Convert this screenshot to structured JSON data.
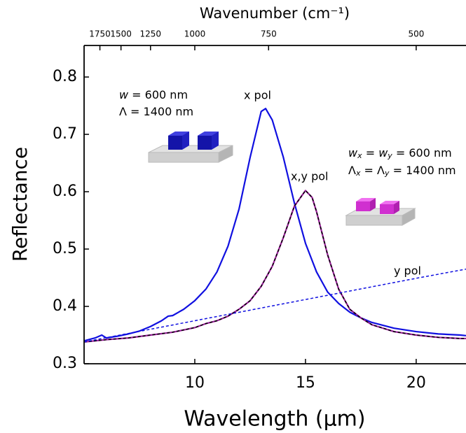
{
  "chart_data": {
    "type": "line",
    "xlabel": "Wavelength (μm)",
    "ylabel": "Reflectance",
    "x2label": "Wavenumber (cm⁻¹)",
    "xlim": [
      5,
      22.25
    ],
    "ylim": [
      0.3,
      0.855
    ],
    "xticks": [
      10,
      15,
      20
    ],
    "yticks": [
      0.3,
      0.4,
      0.5,
      0.6,
      0.7,
      0.8
    ],
    "x2ticks": [
      1750,
      1500,
      1250,
      1000,
      750,
      500
    ],
    "series": [
      {
        "name": "x pol",
        "color": "#1010e0",
        "dash": false,
        "x": [
          5,
          5.5,
          5.8,
          6,
          6.5,
          7,
          7.5,
          8,
          8.5,
          8.8,
          9,
          9.5,
          10,
          10.5,
          11,
          11.5,
          12,
          12.5,
          13,
          13.2,
          13.5,
          14,
          14.5,
          15,
          15.5,
          16,
          16.5,
          17,
          17.5,
          18,
          19,
          20,
          21,
          22,
          22.25
        ],
        "values": [
          0.34,
          0.345,
          0.35,
          0.345,
          0.348,
          0.352,
          0.357,
          0.365,
          0.375,
          0.383,
          0.384,
          0.395,
          0.41,
          0.43,
          0.46,
          0.505,
          0.57,
          0.66,
          0.74,
          0.745,
          0.725,
          0.66,
          0.58,
          0.51,
          0.46,
          0.425,
          0.405,
          0.39,
          0.38,
          0.372,
          0.362,
          0.356,
          0.352,
          0.35,
          0.349
        ]
      },
      {
        "name": "x,y pol",
        "color": "#9b1f9b",
        "dash": false,
        "x": [
          5,
          6,
          7,
          8,
          9,
          10,
          10.5,
          11,
          11.5,
          12,
          12.5,
          13,
          13.5,
          14,
          14.5,
          15,
          15.3,
          15.5,
          16,
          16.5,
          17,
          17.5,
          18,
          19,
          20,
          21,
          22,
          22.25
        ],
        "values": [
          0.338,
          0.342,
          0.345,
          0.35,
          0.355,
          0.363,
          0.37,
          0.375,
          0.383,
          0.395,
          0.41,
          0.435,
          0.47,
          0.52,
          0.575,
          0.602,
          0.59,
          0.565,
          0.49,
          0.43,
          0.395,
          0.38,
          0.368,
          0.356,
          0.35,
          0.346,
          0.344,
          0.344
        ]
      },
      {
        "color": "#000000",
        "dash": true,
        "x": [
          5,
          6,
          7,
          8,
          9,
          10,
          10.5,
          11,
          11.5,
          12,
          12.5,
          13,
          13.5,
          14,
          14.5,
          15,
          15.3,
          15.5,
          16,
          16.5,
          17,
          17.5,
          18,
          19,
          20,
          21,
          22,
          22.25
        ],
        "values": [
          0.338,
          0.342,
          0.345,
          0.35,
          0.355,
          0.363,
          0.37,
          0.375,
          0.383,
          0.395,
          0.41,
          0.435,
          0.47,
          0.52,
          0.575,
          0.602,
          0.59,
          0.565,
          0.49,
          0.43,
          0.395,
          0.38,
          0.368,
          0.356,
          0.35,
          0.346,
          0.344,
          0.344
        ]
      },
      {
        "name": "y pol",
        "color": "#1010e0",
        "dash": true,
        "x": [
          5,
          10,
          15,
          20,
          22.25
        ],
        "values": [
          0.338,
          0.375,
          0.412,
          0.449,
          0.465
        ]
      }
    ],
    "annotations": [
      {
        "parts": [
          "w",
          " = 600 nm"
        ]
      },
      {
        "parts": [
          "Λ = 1400 nm"
        ]
      },
      {
        "parts": [
          "w",
          "x",
          " = ",
          "w",
          "y",
          " = 600 nm"
        ]
      },
      {
        "parts": [
          "Λ",
          "x",
          " = Λ",
          "y",
          " = 1400 nm"
        ]
      }
    ]
  }
}
